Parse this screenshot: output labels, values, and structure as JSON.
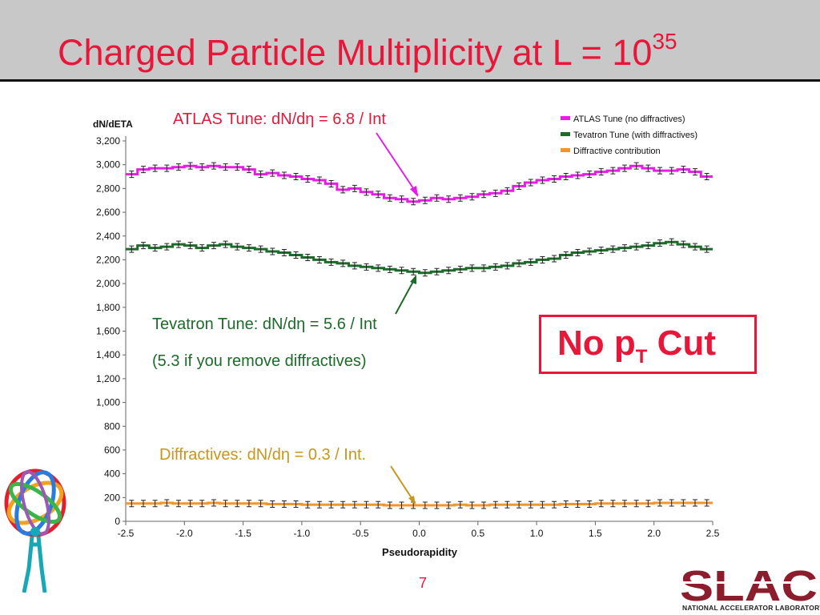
{
  "slide": {
    "title": "Charged Particle Multiplicity at L = 10",
    "title_superscript": "35",
    "page_number": "7",
    "cut_label": "No p",
    "cut_label_sub": "T",
    "cut_label_suffix": " Cut",
    "institution": "SLAC",
    "institution_sub": "NATIONAL ACCELERATOR LABORATORY"
  },
  "annotations": {
    "atlas": "ATLAS Tune: dN/dη = 6.8 / Int",
    "tevatron_line1": "Tevatron Tune: dN/dη = 5.6 / Int",
    "tevatron_line2": "(5.3 if you remove diffractives)",
    "diffractive": "Diffractives: dN/dη = 0.3 / Int."
  },
  "colors": {
    "title": "#e8173a",
    "atlas": "#e41ee4",
    "tevatron": "#1d6b2a",
    "diffractive": "#f0962d",
    "diffractive_annotation": "#c8961e"
  },
  "chart_data": {
    "type": "line",
    "ylabel": "dN/dETA",
    "xlabel": "Pseudorapidity",
    "xlim": [
      -2.5,
      2.5
    ],
    "ylim": [
      0,
      3200
    ],
    "x_ticks": [
      "-2.5",
      "-2.0",
      "-1.5",
      "-1.0",
      "-0.5",
      "0.0",
      "0.5",
      "1.0",
      "1.5",
      "2.0",
      "2.5"
    ],
    "y_ticks": [
      "0",
      "200",
      "400",
      "600",
      "800",
      "1,000",
      "1,200",
      "1,400",
      "1,600",
      "1,800",
      "2,000",
      "2,200",
      "2,400",
      "2,600",
      "2,800",
      "3,000",
      "3,200"
    ],
    "legend_position": "top-right",
    "x": [
      -2.45,
      -2.35,
      -2.25,
      -2.15,
      -2.05,
      -1.95,
      -1.85,
      -1.75,
      -1.65,
      -1.55,
      -1.45,
      -1.35,
      -1.25,
      -1.15,
      -1.05,
      -0.95,
      -0.85,
      -0.75,
      -0.65,
      -0.55,
      -0.45,
      -0.35,
      -0.25,
      -0.15,
      -0.05,
      0.05,
      0.15,
      0.25,
      0.35,
      0.45,
      0.55,
      0.65,
      0.75,
      0.85,
      0.95,
      1.05,
      1.15,
      1.25,
      1.35,
      1.45,
      1.55,
      1.65,
      1.75,
      1.85,
      1.95,
      2.05,
      2.15,
      2.25,
      2.35,
      2.45
    ],
    "series": [
      {
        "name": "ATLAS Tune (no diffractives)",
        "values": [
          2920,
          2960,
          2970,
          2970,
          2980,
          2990,
          2980,
          2990,
          2980,
          2980,
          2960,
          2920,
          2930,
          2910,
          2900,
          2880,
          2870,
          2840,
          2790,
          2800,
          2770,
          2750,
          2720,
          2710,
          2690,
          2700,
          2720,
          2710,
          2720,
          2730,
          2750,
          2760,
          2780,
          2820,
          2850,
          2870,
          2880,
          2900,
          2910,
          2920,
          2940,
          2950,
          2970,
          2990,
          2970,
          2950,
          2950,
          2960,
          2940,
          2900
        ]
      },
      {
        "name": "Tevatron Tune (with diffractives)",
        "values": [
          2290,
          2320,
          2300,
          2310,
          2330,
          2320,
          2300,
          2320,
          2330,
          2310,
          2300,
          2290,
          2270,
          2260,
          2240,
          2220,
          2200,
          2180,
          2170,
          2150,
          2140,
          2130,
          2120,
          2110,
          2100,
          2090,
          2100,
          2110,
          2120,
          2130,
          2130,
          2140,
          2150,
          2170,
          2180,
          2200,
          2210,
          2240,
          2260,
          2270,
          2280,
          2290,
          2300,
          2310,
          2320,
          2340,
          2350,
          2330,
          2310,
          2290
        ]
      },
      {
        "name": "Diffractive contribution",
        "values": [
          150,
          150,
          150,
          155,
          150,
          150,
          150,
          155,
          150,
          150,
          150,
          150,
          145,
          145,
          145,
          140,
          140,
          140,
          140,
          140,
          140,
          140,
          135,
          135,
          135,
          135,
          135,
          135,
          140,
          135,
          135,
          140,
          140,
          140,
          140,
          140,
          140,
          145,
          145,
          145,
          150,
          150,
          150,
          150,
          150,
          155,
          155,
          155,
          155,
          155
        ]
      }
    ]
  }
}
